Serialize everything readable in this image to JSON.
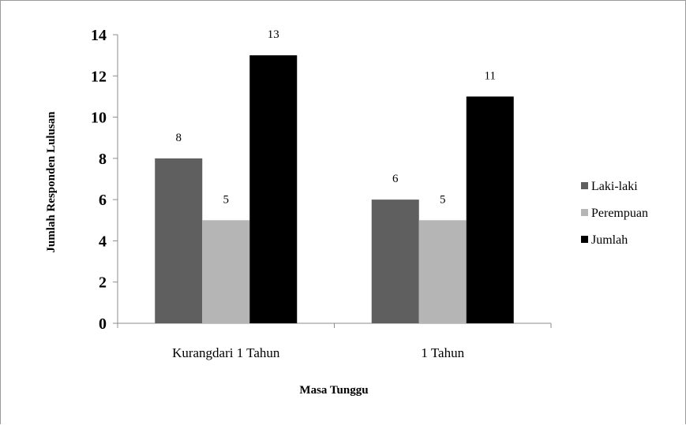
{
  "chart_data": {
    "type": "bar",
    "categories": [
      "Kurangdari 1 Tahun",
      "1 Tahun"
    ],
    "series": [
      {
        "name": "Laki-laki",
        "values": [
          8,
          6
        ],
        "color": "#5f5f5f"
      },
      {
        "name": "Perempuan",
        "values": [
          5,
          5
        ],
        "color": "#b5b5b5"
      },
      {
        "name": "Jumlah",
        "values": [
          13,
          11
        ],
        "color": "#000000"
      }
    ],
    "data_labels": true,
    "xlabel": "Masa Tunggu",
    "ylabel": "Jumlah Responden  Lulusan",
    "ylim": [
      0,
      14
    ],
    "yticks": [
      0,
      2,
      4,
      6,
      8,
      10,
      12,
      14
    ],
    "grid": false,
    "legend_position": "right"
  }
}
